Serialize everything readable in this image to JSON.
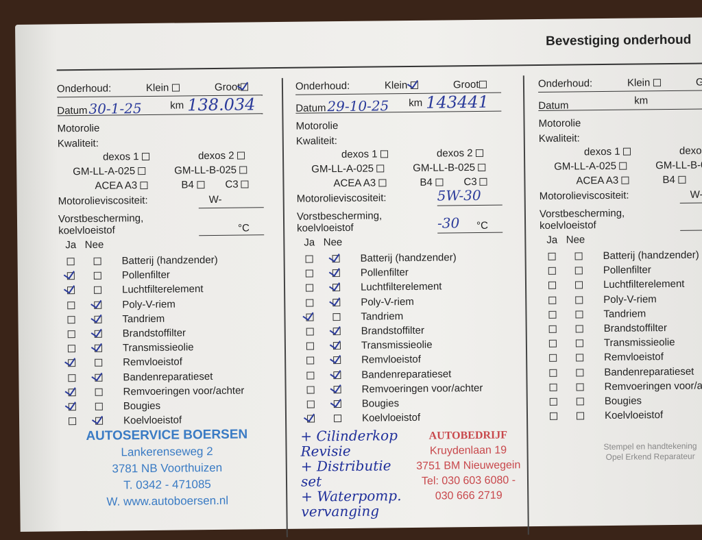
{
  "header": {
    "title": "Bevestiging onderhoud"
  },
  "labels": {
    "onderhoud": "Onderhoud:",
    "klein": "Klein",
    "groot": "Groot",
    "datum": "Datum",
    "km": "km",
    "motorolie": "Motorolie",
    "kwaliteit": "Kwaliteit:",
    "dexos1": "dexos 1",
    "dexos2": "dexos 2",
    "gma": "GM-LL-A-025",
    "gmb": "GM-LL-B-025",
    "acea": "ACEA A3",
    "b4": "B4",
    "c3": "C3",
    "visc": "Motorolieviscositeit:",
    "visc_unit": "W-",
    "vorst1": "Vorstbescherming,",
    "vorst2": "koelvloeistof",
    "celsius": "°C",
    "ja": "Ja",
    "nee": "Nee",
    "stamp_note1": "Stempel en handtekening",
    "stamp_note2": "Opel Erkend Reparateur"
  },
  "items": [
    "Batterij (handzender)",
    "Pollenfilter",
    "Luchtfilterelement",
    "Poly-V-riem",
    "Tandriem",
    "Brandstoffilter",
    "Transmissieolie",
    "Remvloeistof",
    "Bandenreparatieset",
    "Remvoeringen voor/achter",
    "Bougies",
    "Koelvloeistof"
  ],
  "entries": [
    {
      "klein": false,
      "groot": true,
      "datum": "30-1-25",
      "km": "138.034",
      "viscosity": "",
      "frost": "",
      "ja": [
        false,
        true,
        true,
        false,
        false,
        false,
        false,
        true,
        false,
        true,
        true,
        false
      ],
      "nee": [
        false,
        false,
        false,
        true,
        true,
        true,
        true,
        false,
        true,
        false,
        false,
        true
      ],
      "stamp": [
        "AUTOSERVICE BOERSEN",
        "Lankerenseweg 2",
        "3781 NB Voorthuizen",
        "T. 0342 - 471085",
        "W. www.autoboersen.nl"
      ]
    },
    {
      "klein": true,
      "groot": false,
      "datum": "29-10-25",
      "km": "143441",
      "viscosity": "5W-30",
      "frost": "-30",
      "ja": [
        false,
        false,
        false,
        false,
        true,
        false,
        false,
        false,
        false,
        false,
        false,
        true
      ],
      "nee": [
        true,
        true,
        true,
        true,
        false,
        true,
        true,
        true,
        true,
        true,
        true,
        false
      ],
      "stamp": [
        "AUTOBEDRIJF",
        "Kruydenlaan 19",
        "3751 BM Nieuwegein",
        "Tel: 030 603 6080 - 030 666 2719"
      ],
      "notes": [
        "+ Cilinderkop",
        "Revisie",
        "+ Distributie",
        "set",
        "+ Waterpomp.",
        "vervanging"
      ]
    },
    {
      "klein": false,
      "groot": false,
      "datum": "",
      "km": "",
      "viscosity": "",
      "frost": "",
      "ja": [
        false,
        false,
        false,
        false,
        false,
        false,
        false,
        false,
        false,
        false,
        false,
        false
      ],
      "nee": [
        false,
        false,
        false,
        false,
        false,
        false,
        false,
        false,
        false,
        false,
        false,
        false
      ]
    }
  ]
}
